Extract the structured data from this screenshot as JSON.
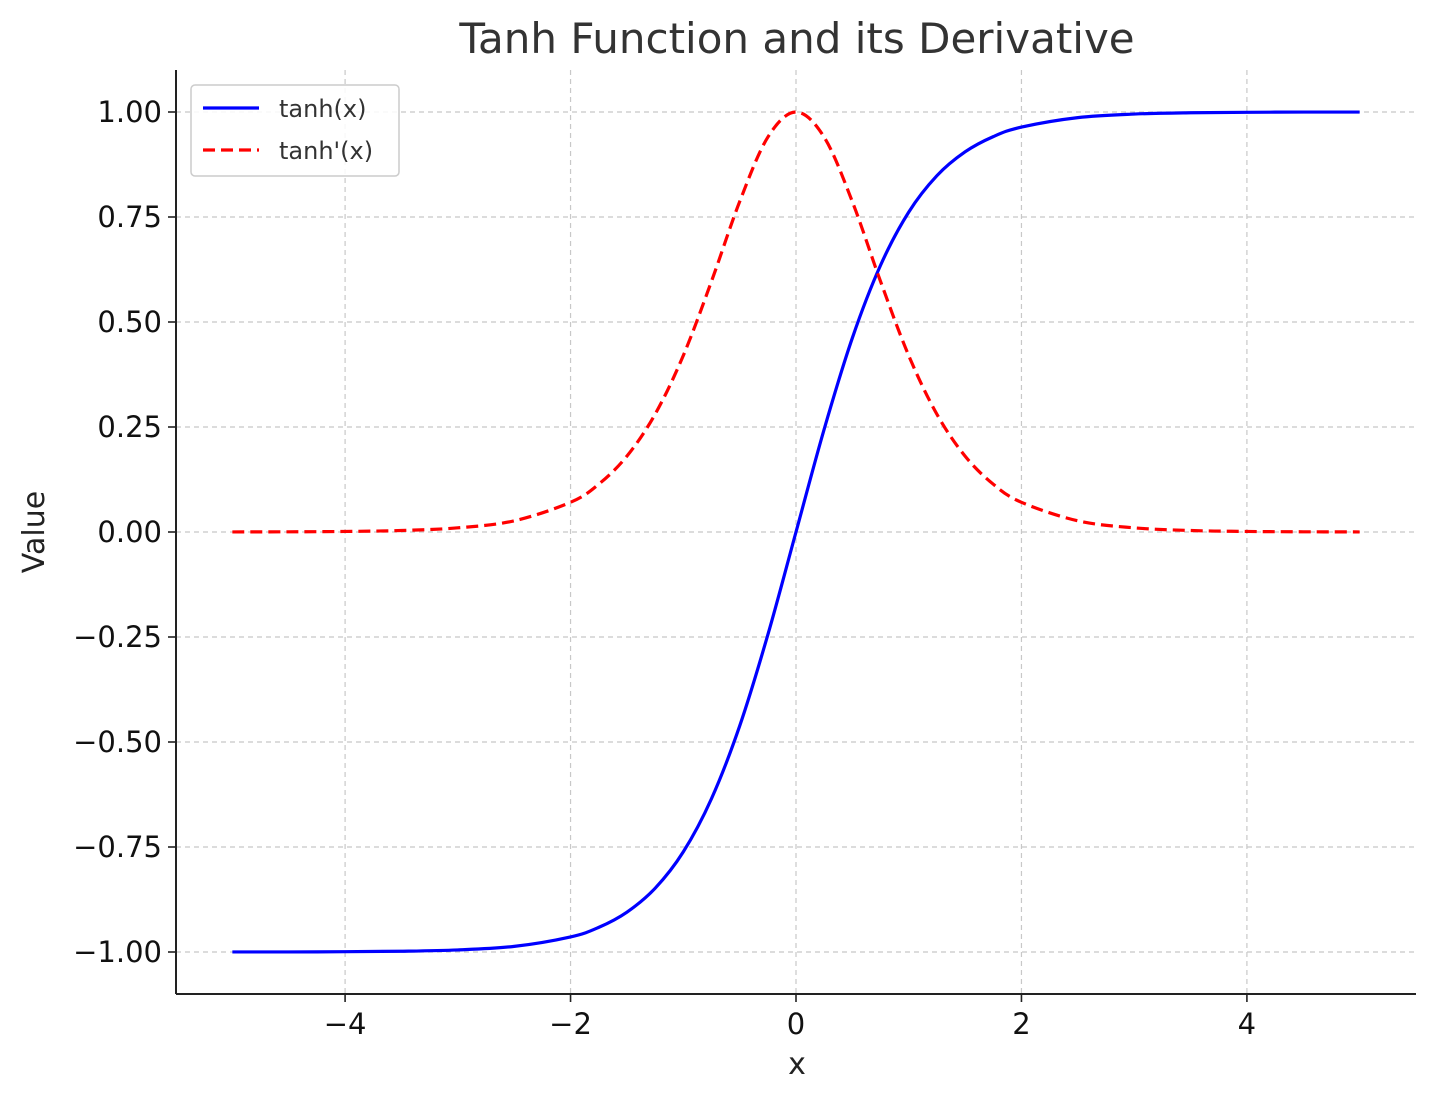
{
  "chart_data": {
    "type": "line",
    "title": "Tanh Function and its Derivative",
    "xlabel": "x",
    "ylabel": "Value",
    "xlim": [
      -5.5,
      5.5
    ],
    "ylim": [
      -1.1,
      1.1
    ],
    "x_ticks": [
      -4,
      -2,
      0,
      2,
      4
    ],
    "x_tick_labels": [
      "−4",
      "−2",
      "0",
      "2",
      "4"
    ],
    "y_ticks": [
      -1.0,
      -0.75,
      -0.5,
      -0.25,
      0.0,
      0.25,
      0.5,
      0.75,
      1.0
    ],
    "y_tick_labels": [
      "−1.00",
      "−0.75",
      "−0.50",
      "−0.25",
      "0.00",
      "0.25",
      "0.50",
      "0.75",
      "1.00"
    ],
    "grid": true,
    "legend_position": "top-left",
    "x": [
      -5,
      -4.5,
      -4,
      -3.5,
      -3,
      -2.5,
      -2,
      -1.75,
      -1.5,
      -1.25,
      -1,
      -0.75,
      -0.5,
      -0.25,
      0,
      0.25,
      0.5,
      0.75,
      1,
      1.25,
      1.5,
      1.75,
      2,
      2.5,
      3,
      3.5,
      4,
      4.5,
      5
    ],
    "series": [
      {
        "name": "tanh(x)",
        "color": "#0000ff",
        "style": "solid",
        "values": [
          -0.9999,
          -0.9998,
          -0.9993,
          -0.9982,
          -0.9951,
          -0.9866,
          -0.964,
          -0.9414,
          -0.9051,
          -0.8483,
          -0.7616,
          -0.6351,
          -0.4621,
          -0.2449,
          0.0,
          0.2449,
          0.4621,
          0.6351,
          0.7616,
          0.8483,
          0.9051,
          0.9414,
          0.964,
          0.9866,
          0.9951,
          0.9982,
          0.9993,
          0.9998,
          0.9999
        ]
      },
      {
        "name": "tanh'(x)",
        "color": "#ff0000",
        "style": "dashed",
        "values": [
          0.0002,
          0.0005,
          0.0013,
          0.0036,
          0.0099,
          0.0266,
          0.0707,
          0.1138,
          0.1807,
          0.2804,
          0.42,
          0.5966,
          0.7864,
          0.94,
          1.0,
          0.94,
          0.7864,
          0.5966,
          0.42,
          0.2804,
          0.1807,
          0.1138,
          0.0707,
          0.0266,
          0.0099,
          0.0036,
          0.0013,
          0.0005,
          0.0002
        ]
      }
    ]
  }
}
